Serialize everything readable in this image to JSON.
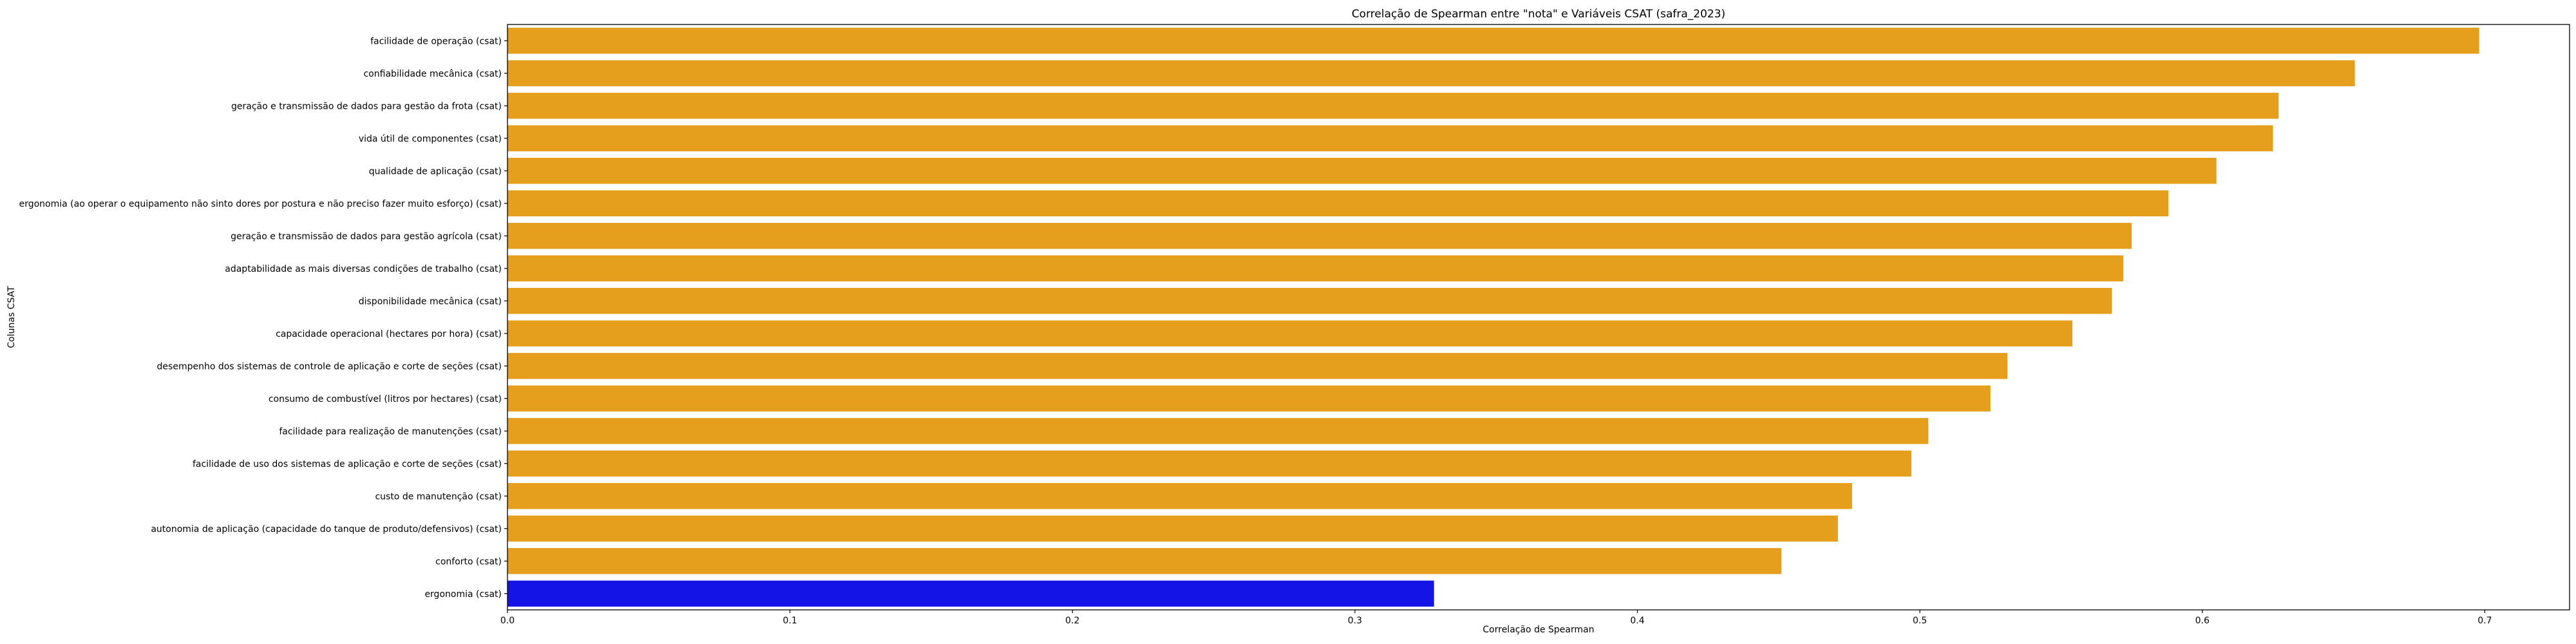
{
  "chart_data": {
    "type": "bar",
    "orientation": "horizontal",
    "title": "Correlação de Spearman entre \"nota\" e Variáveis CSAT (safra_2023)",
    "xlabel": "Correlação de Spearman",
    "ylabel": "Colunas CSAT",
    "xlim": [
      0,
      0.73
    ],
    "xticks": [
      0.0,
      0.1,
      0.2,
      0.3,
      0.4,
      0.5,
      0.6,
      0.7
    ],
    "xtick_labels": [
      "0.0",
      "0.1",
      "0.2",
      "0.3",
      "0.4",
      "0.5",
      "0.6",
      "0.7"
    ],
    "grid": false,
    "categories": [
      "facilidade de operação (csat)",
      "confiabilidade mecânica (csat)",
      "geração e transmissão de dados para gestão da frota (csat)",
      "vida útil de componentes (csat)",
      "qualidade de aplicação (csat)",
      "ergonomia (ao operar o equipamento não sinto dores por postura e não preciso fazer muito esforço) (csat)",
      "geração e transmissão de dados para gestão agrícola (csat)",
      "adaptabilidade as mais diversas condições de trabalho (csat)",
      "disponibilidade mecânica (csat)",
      "capacidade operacional (hectares por hora) (csat)",
      "desempenho dos sistemas de controle de aplicação e corte de seções (csat)",
      "consumo de combustível (litros por hectares) (csat)",
      "facilidade para realização de manutenções (csat)",
      "facilidade de uso dos sistemas de aplicação e corte de seções (csat)",
      "custo de manutenção (csat)",
      "autonomia de aplicação (capacidade do tanque de produto/defensivos) (csat)",
      "conforto (csat)",
      "ergonomia (csat)"
    ],
    "values": [
      0.698,
      0.654,
      0.627,
      0.625,
      0.605,
      0.588,
      0.575,
      0.572,
      0.568,
      0.554,
      0.531,
      0.525,
      0.503,
      0.497,
      0.476,
      0.471,
      0.451,
      0.328
    ],
    "colors": [
      "#e69f1d",
      "#e69f1d",
      "#e69f1d",
      "#e69f1d",
      "#e69f1d",
      "#e69f1d",
      "#e69f1d",
      "#e69f1d",
      "#e69f1d",
      "#e69f1d",
      "#e69f1d",
      "#e69f1d",
      "#e69f1d",
      "#e69f1d",
      "#e69f1d",
      "#e69f1d",
      "#e69f1d",
      "#1414e6"
    ]
  }
}
